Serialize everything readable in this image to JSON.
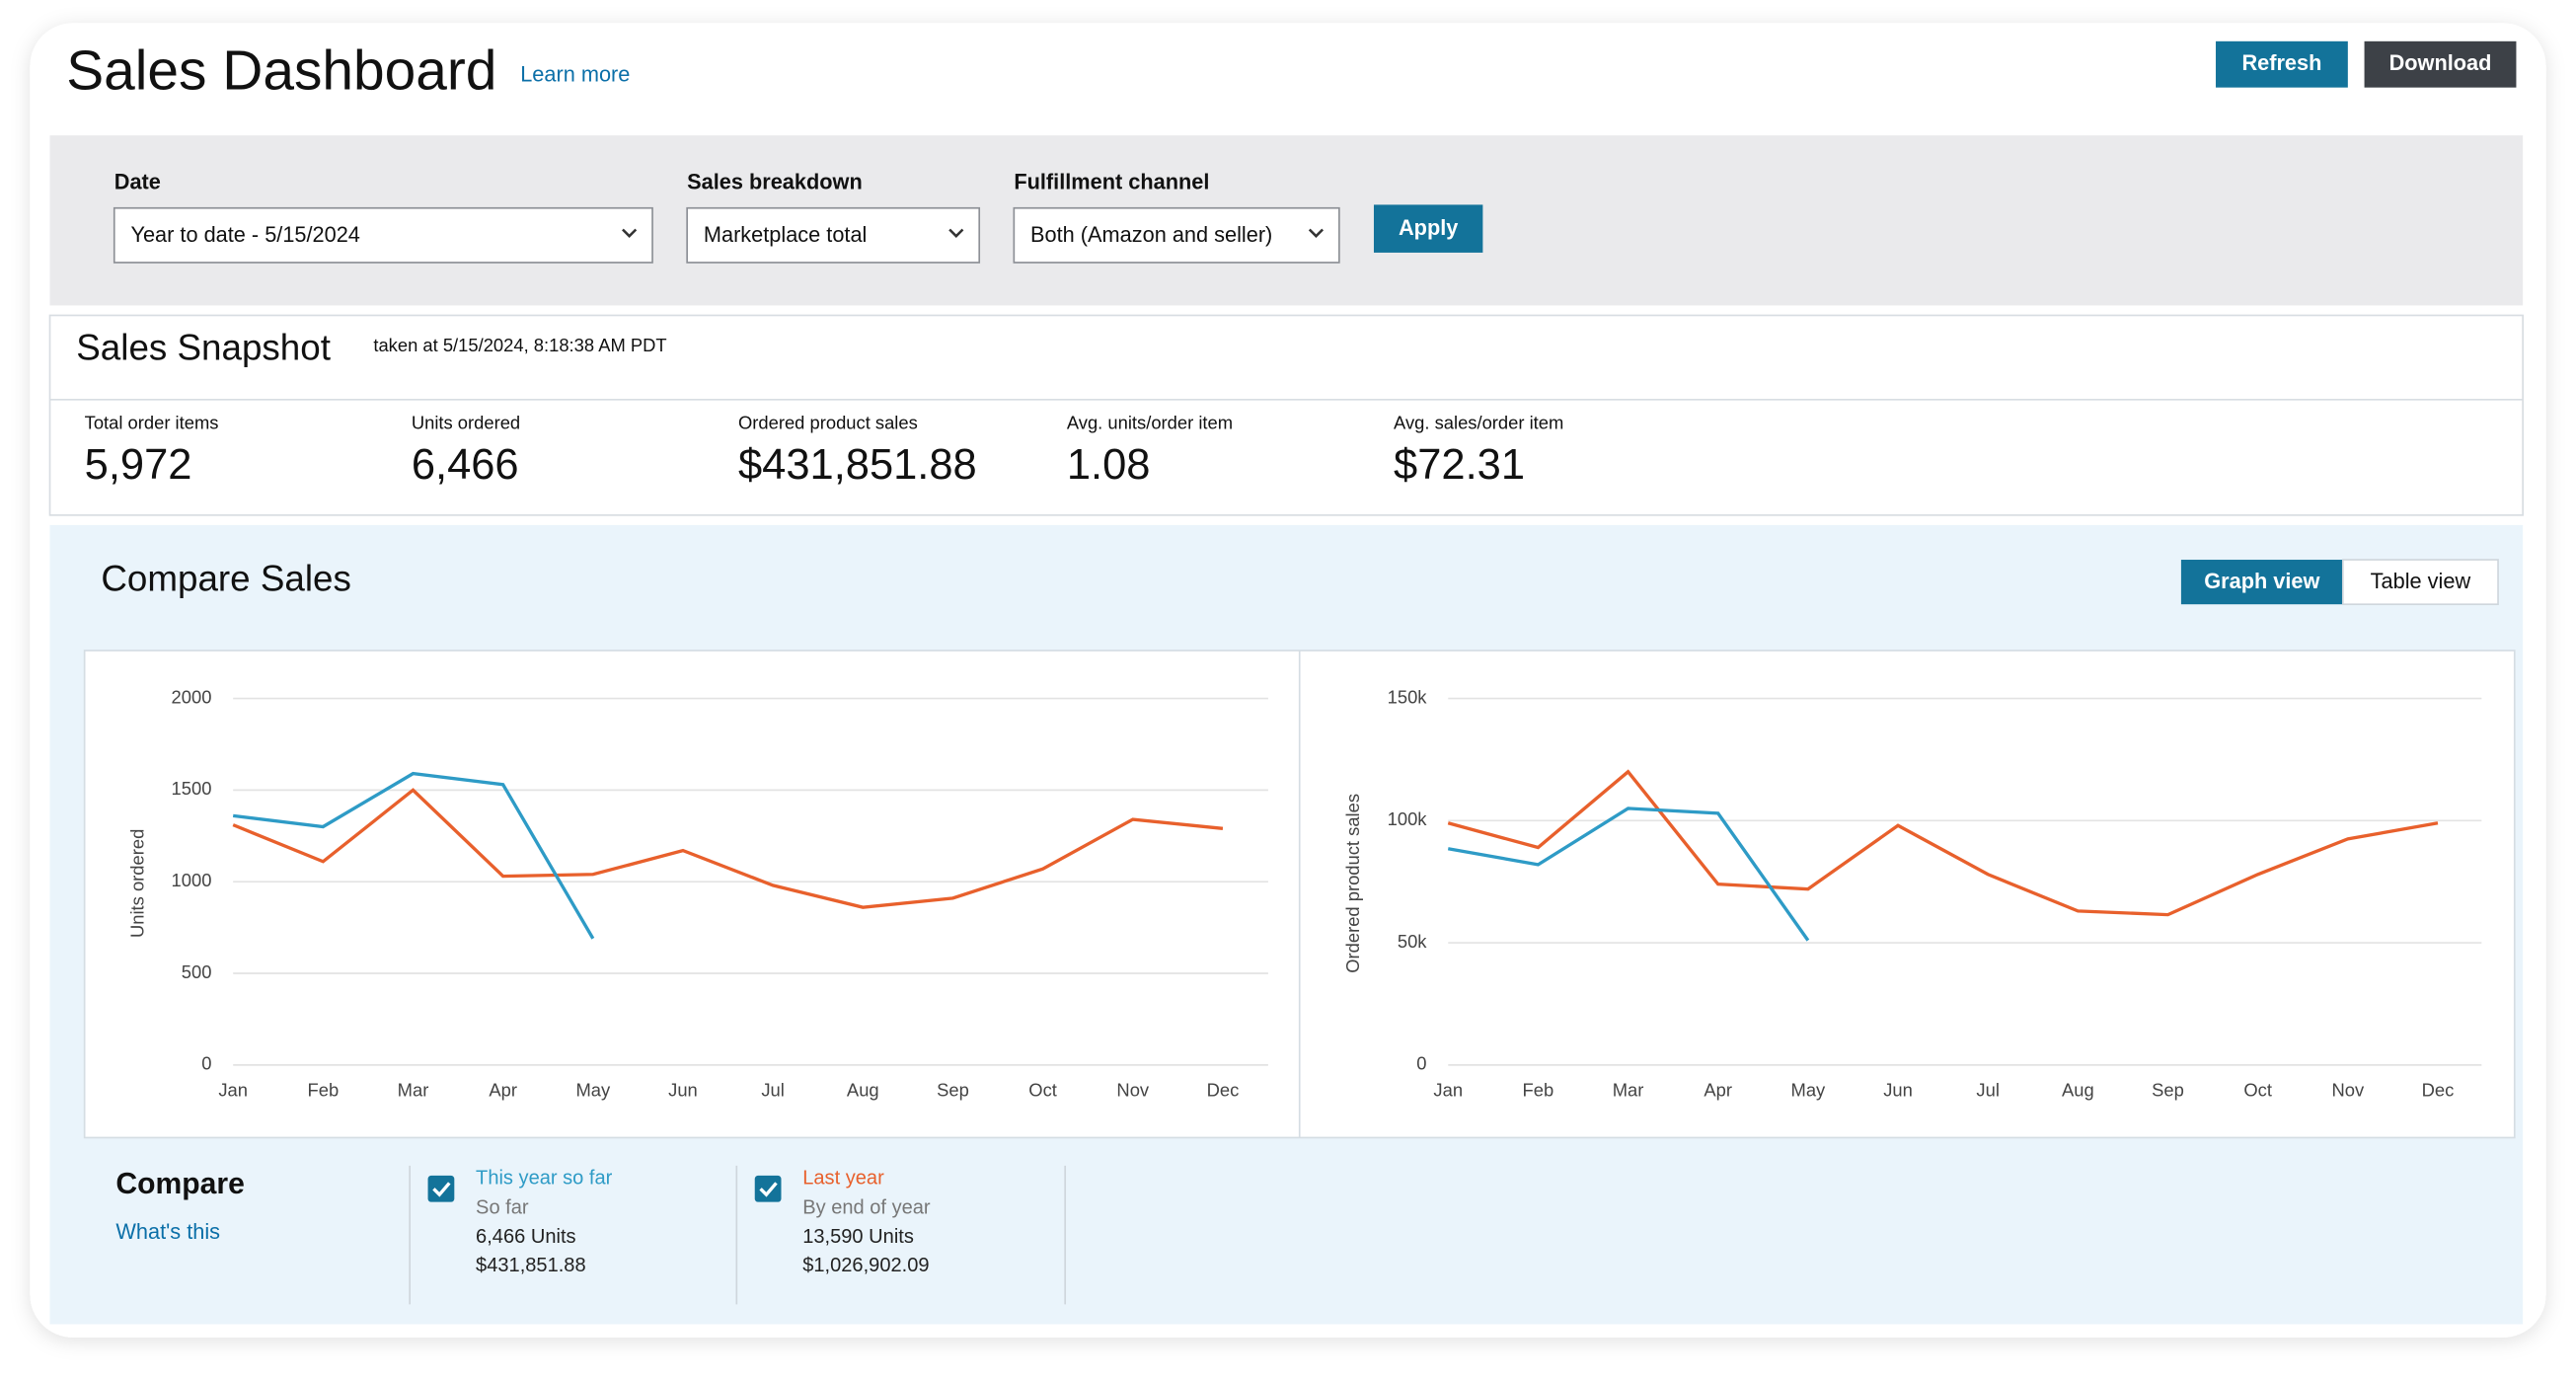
{
  "header": {
    "title": "Sales Dashboard",
    "learn_more": "Learn more",
    "buttons": [
      "Refresh",
      "Download"
    ]
  },
  "filters": [
    {
      "label": "Date",
      "value": "Year to date - 5/15/2024"
    },
    {
      "label": "Sales breakdown",
      "value": "Marketplace total"
    },
    {
      "label": "Fulfillment channel",
      "value": "Both (Amazon and seller)"
    }
  ],
  "apply": "Apply",
  "snapshot": {
    "title": "Sales Snapshot",
    "taken": "taken at 5/15/2024, 8:18:38 AM PDT",
    "metrics": [
      {
        "label": "Total order items",
        "value": "5,972"
      },
      {
        "label": "Units ordered",
        "value": "6,466"
      },
      {
        "label": "Ordered product sales",
        "value": "$431,851.88"
      },
      {
        "label": "Avg. units/order item",
        "value": "1.08"
      },
      {
        "label": "Avg. sales/order item",
        "value": "$72.31"
      }
    ]
  },
  "compare_sales": {
    "title": "Compare Sales",
    "views": [
      "Graph view",
      "Table view"
    ]
  },
  "chart_data": [
    {
      "type": "line",
      "y_label": "Units ordered",
      "categories": [
        "Jan",
        "Feb",
        "Mar",
        "Apr",
        "May",
        "Jun",
        "Jul",
        "Aug",
        "Sep",
        "Oct",
        "Nov",
        "Dec"
      ],
      "ylim": [
        0,
        2000
      ],
      "yticks": [
        0,
        500,
        1000,
        1500,
        2000
      ],
      "grid": true,
      "series": [
        {
          "name": "This year so far",
          "color": "#2e9bc6",
          "values": [
            1360,
            1300,
            1590,
            1530,
            690,
            null,
            null,
            null,
            null,
            null,
            null,
            null
          ]
        },
        {
          "name": "Last year",
          "color": "#e8602c",
          "values": [
            1310,
            1110,
            1500,
            1030,
            1040,
            1170,
            980,
            860,
            910,
            1070,
            1340,
            1290
          ]
        }
      ]
    },
    {
      "type": "line",
      "y_label": "Ordered product sales",
      "categories": [
        "Jan",
        "Feb",
        "Mar",
        "Apr",
        "May",
        "Jun",
        "Jul",
        "Aug",
        "Sep",
        "Oct",
        "Nov",
        "Dec"
      ],
      "ylim": [
        0,
        150000
      ],
      "yticks": [
        0,
        {
          "value": 50000,
          "label": "50k"
        },
        {
          "value": 100000,
          "label": "100k"
        },
        {
          "value": 150000,
          "label": "150k"
        }
      ],
      "grid": true,
      "series": [
        {
          "name": "This year so far",
          "color": "#2e9bc6",
          "values": [
            88500,
            82000,
            105000,
            103000,
            51000,
            null,
            null,
            null,
            null,
            null,
            null,
            null
          ]
        },
        {
          "name": "Last year",
          "color": "#e8602c",
          "values": [
            99000,
            89000,
            120000,
            74000,
            72000,
            98000,
            78000,
            63000,
            61500,
            78000,
            92500,
            99000
          ]
        }
      ]
    }
  ],
  "compare": {
    "title": "Compare",
    "whats_this": "What's this",
    "items": [
      {
        "lines": [
          "So far",
          "6,466 Units",
          "$431,851.88"
        ]
      },
      {
        "lines": [
          "By end of year",
          "13,590 Units",
          "$1,026,902.09"
        ]
      }
    ]
  }
}
